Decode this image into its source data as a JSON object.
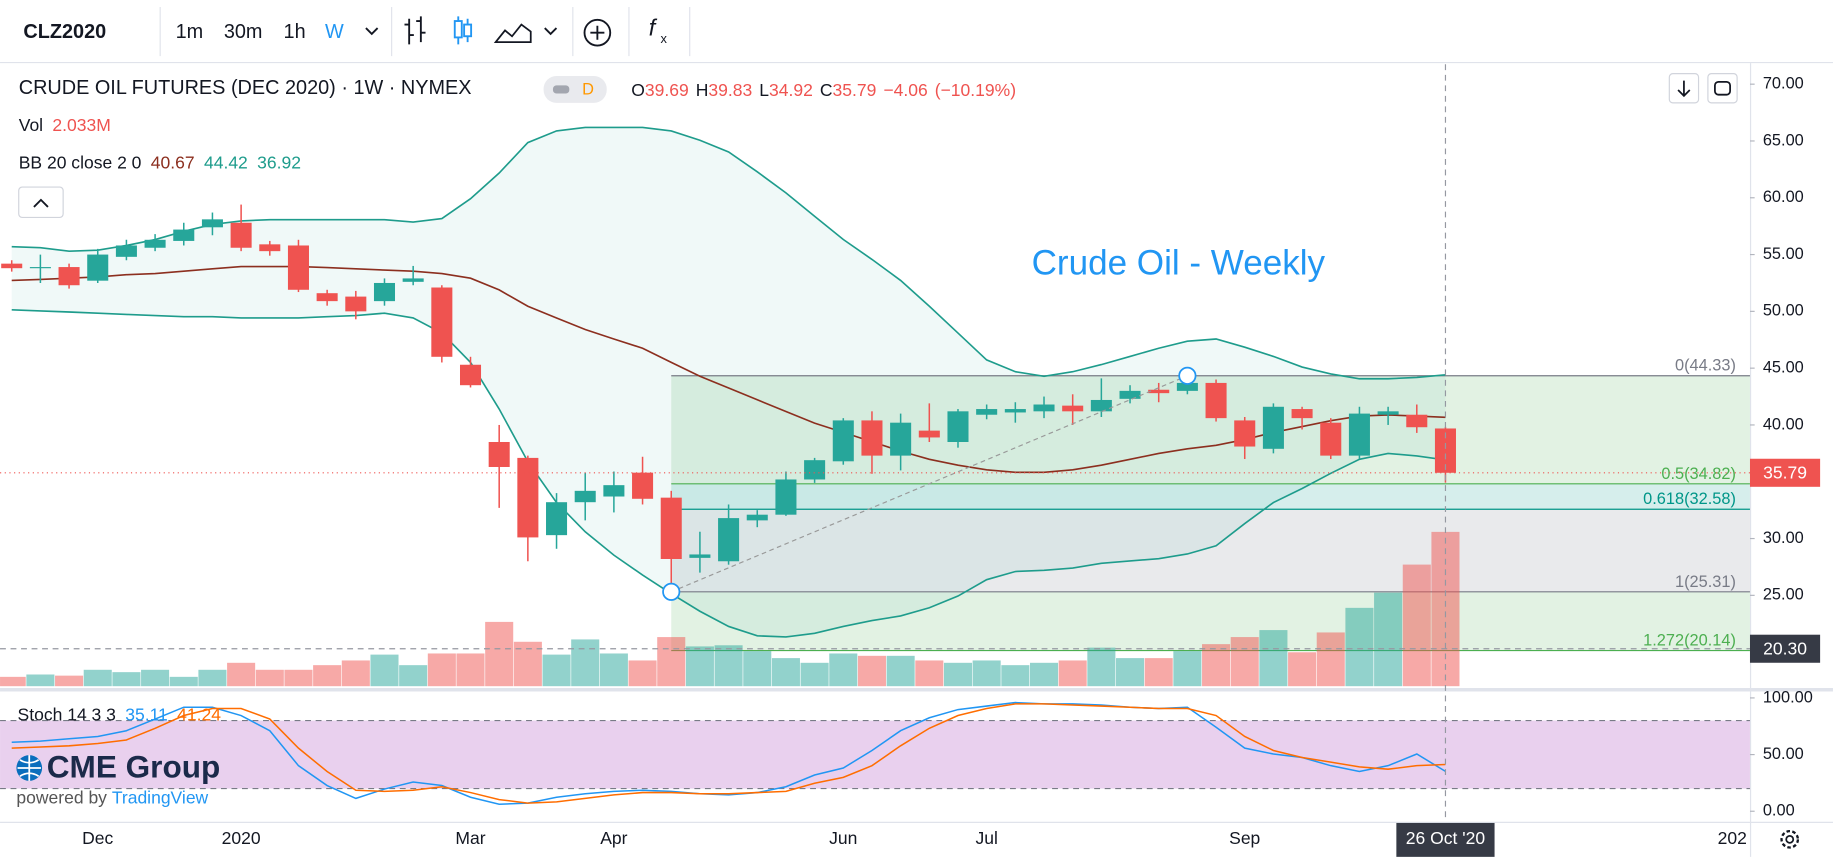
{
  "toolbar": {
    "symbol": "CLZ2020",
    "intervals": [
      "1m",
      "30m",
      "1h",
      "W"
    ],
    "active_interval": "W"
  },
  "chart_data": {
    "type": "candlestick",
    "title": "CRUDE OIL FUTURES (DEC 2020) · 1W · NYMEX",
    "badge": "D",
    "annotation": "Crude Oil - Weekly",
    "categories": [
      null,
      null,
      null,
      "Dec",
      null,
      null,
      null,
      null,
      "2020",
      null,
      null,
      null,
      null,
      null,
      null,
      null,
      "Mar",
      null,
      null,
      null,
      null,
      "Apr",
      null,
      null,
      null,
      null,
      null,
      null,
      null,
      "Jun",
      null,
      null,
      null,
      null,
      "Jul",
      null,
      null,
      null,
      null,
      null,
      null,
      null,
      null,
      "Sep",
      null,
      null,
      null,
      null,
      null,
      null,
      null,
      null,
      null,
      null,
      null,
      null,
      null,
      null,
      null,
      null,
      "202"
    ],
    "open": [
      54.2,
      53.8,
      53.9,
      52.7,
      54.8,
      55.6,
      56.2,
      57.4,
      57.8,
      55.9,
      55.8,
      51.6,
      51.3,
      50.9,
      52.6,
      52.1,
      45.3,
      38.5,
      37.1,
      30.3,
      33.2,
      33.7,
      35.8,
      33.6,
      28.3,
      28.0,
      31.6,
      32.1,
      35.2,
      36.8,
      40.4,
      37.3,
      39.5,
      38.5,
      40.9,
      41.1,
      41.2,
      41.7,
      41.2,
      42.3,
      43.1,
      43.0,
      43.7,
      40.4,
      37.9,
      41.4,
      40.2,
      37.3,
      40.9,
      40.9,
      39.69,
      null,
      null,
      null,
      null,
      null,
      null,
      null,
      null,
      null,
      null
    ],
    "high": [
      54.5,
      55.0,
      54.2,
      55.5,
      56.3,
      56.8,
      57.8,
      58.7,
      59.4,
      56.2,
      56.3,
      51.9,
      51.8,
      52.9,
      54.0,
      52.3,
      46.0,
      40.0,
      37.3,
      34.0,
      35.8,
      35.9,
      37.2,
      34.2,
      30.6,
      33.0,
      32.5,
      35.9,
      37.1,
      40.6,
      41.2,
      41.0,
      41.9,
      41.4,
      41.8,
      42.0,
      42.5,
      42.7,
      44.1,
      43.5,
      43.7,
      44.33,
      44.0,
      40.7,
      41.9,
      41.6,
      40.6,
      41.6,
      41.6,
      41.8,
      39.83,
      null,
      null,
      null,
      null,
      null,
      null,
      null,
      null,
      null,
      null
    ],
    "low": [
      53.5,
      52.5,
      52.0,
      52.5,
      54.5,
      55.3,
      55.8,
      56.7,
      55.3,
      54.9,
      51.7,
      50.5,
      49.3,
      50.5,
      52.3,
      45.5,
      43.3,
      32.7,
      28.0,
      29.1,
      31.6,
      32.3,
      33.0,
      25.31,
      27.0,
      27.7,
      31.0,
      32.0,
      34.9,
      36.5,
      35.7,
      36.0,
      38.5,
      38.0,
      40.5,
      40.2,
      40.6,
      40.0,
      40.7,
      41.9,
      42.0,
      42.7,
      40.3,
      37.0,
      37.5,
      39.6,
      37.0,
      37.0,
      40.0,
      39.3,
      34.92,
      null,
      null,
      null,
      null,
      null,
      null,
      null,
      null,
      null,
      null
    ],
    "close": [
      53.8,
      53.9,
      52.3,
      55.0,
      55.8,
      56.3,
      57.2,
      58.1,
      55.6,
      55.3,
      51.9,
      50.9,
      50.0,
      52.5,
      52.9,
      46.0,
      43.5,
      36.3,
      30.1,
      33.2,
      34.2,
      34.7,
      33.5,
      28.2,
      28.6,
      31.8,
      32.1,
      35.2,
      36.9,
      40.4,
      37.3,
      40.2,
      38.9,
      41.2,
      41.4,
      41.4,
      41.8,
      41.2,
      42.2,
      43.0,
      42.8,
      43.7,
      40.6,
      38.1,
      41.6,
      40.6,
      37.3,
      41.0,
      41.2,
      39.8,
      35.79,
      null,
      null,
      null,
      null,
      null,
      null,
      null,
      null,
      null,
      null
    ],
    "up_color": "#26a69a",
    "down_color": "#ef5350",
    "ohlc_labels": [
      "O",
      "H",
      "L",
      "C"
    ],
    "change": {
      "value": -4.06,
      "label": "−4.06"
    },
    "change_pct": {
      "value": -10.19,
      "label": "(−10.19%)"
    },
    "ylim": [
      16.9,
      71.75
    ],
    "yticks": [
      {
        "value": 25,
        "label": "25.00"
      },
      {
        "value": 30,
        "label": "30.00"
      },
      {
        "value": 35,
        "label": "35.00"
      },
      {
        "value": 40,
        "label": "40.00"
      },
      {
        "value": 45,
        "label": "45.00"
      },
      {
        "value": 50,
        "label": "50.00"
      },
      {
        "value": 55,
        "label": "55.00"
      },
      {
        "value": 60,
        "label": "60.00"
      },
      {
        "value": 65,
        "label": "65.00"
      },
      {
        "value": 70,
        "label": "70.00"
      }
    ],
    "volume": {
      "label": "Vol",
      "last_label": "2.033M",
      "values": [
        0.123,
        0.154,
        0.139,
        0.216,
        0.185,
        0.216,
        0.123,
        0.216,
        0.308,
        0.216,
        0.216,
        0.277,
        0.339,
        0.416,
        0.277,
        0.431,
        0.431,
        0.847,
        0.585,
        0.416,
        0.616,
        0.431,
        0.339,
        0.647,
        0.524,
        0.539,
        0.462,
        0.37,
        0.308,
        0.431,
        0.4,
        0.4,
        0.339,
        0.308,
        0.339,
        0.277,
        0.308,
        0.339,
        0.508,
        0.37,
        0.37,
        0.462,
        0.554,
        0.647,
        0.739,
        0.447,
        0.708,
        1.032,
        1.232,
        1.602,
        2.033,
        null,
        null,
        null,
        null,
        null,
        null,
        null,
        null,
        null,
        null
      ]
    },
    "bollinger": {
      "label": "BB 20 close 2 0",
      "basis": {
        "color": "#8c2f1f",
        "values": [
          52.72,
          52.82,
          52.92,
          53.03,
          53.23,
          53.33,
          53.54,
          53.74,
          53.95,
          53.95,
          53.95,
          53.85,
          53.74,
          53.64,
          53.54,
          53.33,
          52.92,
          51.89,
          50.45,
          49.42,
          48.4,
          47.57,
          46.75,
          45.51,
          44.28,
          43.25,
          42.22,
          41.19,
          40.16,
          39.34,
          38.52,
          37.7,
          36.98,
          36.46,
          36.05,
          35.84,
          35.84,
          36.05,
          36.46,
          36.98,
          37.49,
          37.9,
          38.21,
          38.72,
          39.34,
          39.86,
          40.37,
          40.78,
          40.88,
          40.78,
          40.67,
          null,
          null,
          null,
          null,
          null,
          null,
          null,
          null,
          null,
          null
        ]
      },
      "upper": {
        "color": "#1e9c8c",
        "values": [
          55.7,
          55.6,
          55.29,
          55.39,
          55.8,
          56.32,
          57.04,
          57.65,
          57.96,
          58.07,
          58.07,
          58.07,
          58.07,
          58.07,
          57.86,
          58.17,
          59.92,
          62.18,
          64.86,
          65.88,
          66.19,
          66.19,
          66.19,
          65.88,
          65.06,
          64.03,
          62.28,
          60.43,
          58.37,
          56.32,
          54.57,
          52.72,
          50.45,
          48.09,
          45.72,
          44.69,
          44.28,
          44.69,
          45.31,
          46.03,
          46.75,
          47.37,
          47.57,
          46.85,
          46.03,
          45.1,
          44.49,
          44.07,
          44.07,
          44.18,
          44.42,
          null,
          null,
          null,
          null,
          null,
          null,
          null,
          null,
          null,
          null
        ]
      },
      "lower": {
        "color": "#1e9c8c",
        "values": [
          50.14,
          50.04,
          49.94,
          49.84,
          49.73,
          49.63,
          49.53,
          49.53,
          49.42,
          49.42,
          49.42,
          49.53,
          49.63,
          49.84,
          49.42,
          48.09,
          45.51,
          41.4,
          36.77,
          33.17,
          30.6,
          28.54,
          26.79,
          25.14,
          23.6,
          22.26,
          21.44,
          21.34,
          21.65,
          22.26,
          22.78,
          23.19,
          23.91,
          24.94,
          26.38,
          27.1,
          27.2,
          27.41,
          27.82,
          28.02,
          28.23,
          28.64,
          29.36,
          31.32,
          33.17,
          34.4,
          35.74,
          36.98,
          37.49,
          37.28,
          36.92,
          null,
          null,
          null,
          null,
          null,
          null,
          null,
          null,
          null,
          null
        ]
      }
    },
    "fib": {
      "levels": [
        {
          "value": 44.33,
          "label": "0(44.33)",
          "color": "#787b86"
        },
        {
          "value": 34.82,
          "label": "0.5(34.82)",
          "color": "#4caf50"
        },
        {
          "value": 32.58,
          "label": "0.618(32.58)",
          "color": "#009688"
        },
        {
          "value": 25.31,
          "label": "1(25.31)",
          "color": "#787b86"
        },
        {
          "value": 20.14,
          "label": "1.272(20.14)",
          "color": "#4caf50"
        }
      ]
    },
    "crosshair": {
      "value": 20.3,
      "label": "20.30",
      "date_label": "26 Oct '20"
    },
    "stoch": {
      "label": "Stoch 14 3 3",
      "ylim": [
        -9.3,
        105.2
      ],
      "yticks": [
        {
          "value": 100,
          "label": "100.00"
        },
        {
          "value": 50,
          "label": "50.00"
        },
        {
          "value": 0,
          "label": "0.00"
        }
      ],
      "band": [
        20,
        80
      ],
      "k": {
        "color": "#2196f3",
        "values": [
          60.8,
          61.9,
          63.9,
          66.0,
          71.1,
          81.4,
          91.8,
          91.8,
          84.5,
          71.1,
          40.2,
          22.7,
          11.3,
          19.6,
          25.8,
          22.7,
          12.4,
          6.2,
          7.2,
          12.4,
          15.5,
          17.5,
          18.6,
          17.5,
          15.5,
          14.4,
          16.5,
          21.6,
          32.0,
          38.1,
          53.6,
          71.1,
          82.5,
          89.7,
          92.8,
          95.9,
          94.8,
          94.8,
          93.8,
          91.8,
          90.7,
          91.8,
          74.2,
          55.7,
          50.5,
          47.4,
          40.2,
          35.1,
          40.2,
          50.5,
          35.11,
          null,
          null,
          null,
          null,
          null,
          null,
          null,
          null,
          null,
          null
        ]
      },
      "d": {
        "color": "#ff6d00",
        "values": [
          55.7,
          56.7,
          57.7,
          59.8,
          62.9,
          73.2,
          84.5,
          90.7,
          90.7,
          81.4,
          55.7,
          35.1,
          18.6,
          17.5,
          18.6,
          21.6,
          16.5,
          10.3,
          7.2,
          8.2,
          11.3,
          14.4,
          16.5,
          16.5,
          15.5,
          15.5,
          16.5,
          17.5,
          24.7,
          29.9,
          40.2,
          57.7,
          73.2,
          84.5,
          90.7,
          94.8,
          94.8,
          93.8,
          92.8,
          91.8,
          90.7,
          90.7,
          84.5,
          66.0,
          53.6,
          47.4,
          43.3,
          39.2,
          37.1,
          40.2,
          41.24,
          null,
          null,
          null,
          null,
          null,
          null,
          null,
          null,
          null,
          null
        ]
      }
    },
    "watermark": {
      "logo": "CME Group",
      "powered": "powered by",
      "brand": "TradingView"
    }
  }
}
